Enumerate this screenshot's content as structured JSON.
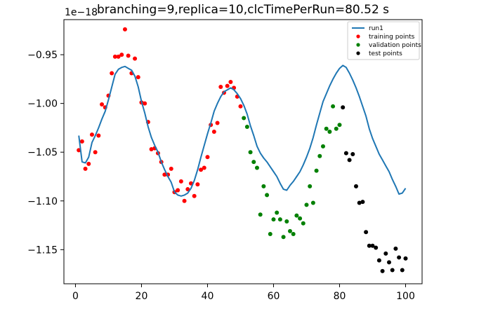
{
  "chart_data": {
    "type": "line",
    "title": "branching=9,replica=10,clcTimePerRun=80.52 s",
    "y_offset_label": "1e−18",
    "xlabel": "",
    "ylabel": "",
    "xlim": [
      -3.5,
      105
    ],
    "ylim": [
      -1.185,
      -0.914
    ],
    "x_ticks": [
      0,
      20,
      40,
      60,
      80,
      100
    ],
    "x_tick_labels": [
      "0",
      "20",
      "40",
      "60",
      "80",
      "100"
    ],
    "y_ticks": [
      -0.95,
      -1.0,
      -1.05,
      -1.1,
      -1.15
    ],
    "y_tick_labels": [
      "−0.95",
      "−1.00",
      "−1.05",
      "−1.10",
      "−1.15"
    ],
    "grid": false,
    "legend_position": "top-right",
    "colors": {
      "run1": "#1f77b4",
      "training": "#ff0000",
      "validation": "#008000",
      "test": "#000000"
    },
    "series": [
      {
        "name": "run1",
        "type": "line",
        "points": [
          [
            1.0,
            -1.033
          ],
          [
            2.0,
            -1.06
          ],
          [
            3.0,
            -1.061
          ],
          [
            4.0,
            -1.055
          ],
          [
            5.0,
            -1.04
          ],
          [
            6.0,
            -1.033
          ],
          [
            7.0,
            -1.025
          ],
          [
            8.0,
            -1.016
          ],
          [
            9.0,
            -1.008
          ],
          [
            10.0,
            -0.996
          ],
          [
            11.0,
            -0.983
          ],
          [
            12.0,
            -0.97
          ],
          [
            13.0,
            -0.965
          ],
          [
            14.0,
            -0.963
          ],
          [
            15.0,
            -0.962
          ],
          [
            16.0,
            -0.964
          ],
          [
            17.0,
            -0.966
          ],
          [
            18.0,
            -0.972
          ],
          [
            19.0,
            -0.983
          ],
          [
            20.0,
            -0.998
          ],
          [
            21.0,
            -1.01
          ],
          [
            22.0,
            -1.024
          ],
          [
            23.0,
            -1.035
          ],
          [
            24.0,
            -1.043
          ],
          [
            25.0,
            -1.05
          ],
          [
            26.0,
            -1.06
          ],
          [
            27.0,
            -1.068
          ],
          [
            28.0,
            -1.075
          ],
          [
            29.0,
            -1.081
          ],
          [
            30.0,
            -1.091
          ],
          [
            31.0,
            -1.094
          ],
          [
            32.0,
            -1.095
          ],
          [
            33.0,
            -1.094
          ],
          [
            34.0,
            -1.092
          ],
          [
            35.0,
            -1.087
          ],
          [
            36.0,
            -1.079
          ],
          [
            37.0,
            -1.068
          ],
          [
            38.0,
            -1.055
          ],
          [
            39.0,
            -1.043
          ],
          [
            40.0,
            -1.031
          ],
          [
            41.0,
            -1.02
          ],
          [
            42.0,
            -1.008
          ],
          [
            43.0,
            -1.0
          ],
          [
            44.0,
            -0.993
          ],
          [
            45.0,
            -0.988
          ],
          [
            46.0,
            -0.986
          ],
          [
            47.0,
            -0.984
          ],
          [
            48.0,
            -0.986
          ],
          [
            49.0,
            -0.99
          ],
          [
            50.0,
            -0.995
          ],
          [
            51.0,
            -1.002
          ],
          [
            52.0,
            -1.011
          ],
          [
            53.0,
            -1.023
          ],
          [
            54.0,
            -1.033
          ],
          [
            55.0,
            -1.044
          ],
          [
            56.0,
            -1.051
          ],
          [
            57.0,
            -1.056
          ],
          [
            58.0,
            -1.06
          ],
          [
            59.0,
            -1.065
          ],
          [
            60.0,
            -1.07
          ],
          [
            61.0,
            -1.075
          ],
          [
            62.0,
            -1.082
          ],
          [
            63.0,
            -1.088
          ],
          [
            64.0,
            -1.089
          ],
          [
            65.0,
            -1.084
          ],
          [
            66.0,
            -1.08
          ],
          [
            67.0,
            -1.075
          ],
          [
            68.0,
            -1.07
          ],
          [
            69.0,
            -1.063
          ],
          [
            70.0,
            -1.055
          ],
          [
            71.0,
            -1.046
          ],
          [
            72.0,
            -1.035
          ],
          [
            73.0,
            -1.022
          ],
          [
            74.0,
            -1.01
          ],
          [
            75.0,
            -0.998
          ],
          [
            76.0,
            -0.99
          ],
          [
            77.0,
            -0.982
          ],
          [
            78.0,
            -0.975
          ],
          [
            79.0,
            -0.969
          ],
          [
            80.0,
            -0.964
          ],
          [
            81.0,
            -0.961
          ],
          [
            82.0,
            -0.963
          ],
          [
            83.0,
            -0.969
          ],
          [
            84.0,
            -0.976
          ],
          [
            85.0,
            -0.984
          ],
          [
            86.0,
            -0.993
          ],
          [
            87.0,
            -1.003
          ],
          [
            88.0,
            -1.013
          ],
          [
            89.0,
            -1.026
          ],
          [
            90.0,
            -1.036
          ],
          [
            91.0,
            -1.044
          ],
          [
            92.0,
            -1.052
          ],
          [
            93.0,
            -1.058
          ],
          [
            94.0,
            -1.064
          ],
          [
            95.0,
            -1.07
          ],
          [
            96.0,
            -1.078
          ],
          [
            97.0,
            -1.085
          ],
          [
            98.0,
            -1.093
          ],
          [
            99.0,
            -1.092
          ],
          [
            100.0,
            -1.087
          ]
        ]
      },
      {
        "name": "training points",
        "type": "scatter",
        "points": [
          [
            1,
            -1.048
          ],
          [
            2,
            -1.039
          ],
          [
            3,
            -1.067
          ],
          [
            4,
            -1.062
          ],
          [
            5,
            -1.032
          ],
          [
            6,
            -1.05
          ],
          [
            7,
            -1.033
          ],
          [
            8,
            -1.001
          ],
          [
            9,
            -1.004
          ],
          [
            10,
            -0.992
          ],
          [
            11,
            -0.969
          ],
          [
            12,
            -0.952
          ],
          [
            13,
            -0.952
          ],
          [
            14,
            -0.95
          ],
          [
            15,
            -0.924
          ],
          [
            16,
            -0.951
          ],
          [
            17,
            -0.969
          ],
          [
            18,
            -0.954
          ],
          [
            19,
            -0.973
          ],
          [
            20,
            -0.999
          ],
          [
            21,
            -1.0
          ],
          [
            22,
            -1.019
          ],
          [
            23,
            -1.047
          ],
          [
            24,
            -1.046
          ],
          [
            25,
            -1.051
          ],
          [
            26,
            -1.06
          ],
          [
            27,
            -1.073
          ],
          [
            28,
            -1.073
          ],
          [
            29,
            -1.067
          ],
          [
            30,
            -1.091
          ],
          [
            31,
            -1.089
          ],
          [
            32,
            -1.08
          ],
          [
            33,
            -1.1
          ],
          [
            34,
            -1.088
          ],
          [
            35,
            -1.082
          ],
          [
            36,
            -1.095
          ],
          [
            37,
            -1.083
          ],
          [
            38,
            -1.068
          ],
          [
            39,
            -1.066
          ],
          [
            40,
            -1.055
          ],
          [
            41,
            -1.022
          ],
          [
            42,
            -1.029
          ],
          [
            43,
            -1.02
          ],
          [
            44,
            -0.983
          ],
          [
            45,
            -0.989
          ],
          [
            46,
            -0.982
          ],
          [
            47,
            -0.978
          ],
          [
            48,
            -0.984
          ],
          [
            49,
            -0.993
          ],
          [
            50,
            -1.003
          ]
        ]
      },
      {
        "name": "validation points",
        "type": "scatter",
        "points": [
          [
            51,
            -1.015
          ],
          [
            52,
            -1.024
          ],
          [
            53,
            -1.05
          ],
          [
            54,
            -1.06
          ],
          [
            55,
            -1.066
          ],
          [
            56,
            -1.114
          ],
          [
            57,
            -1.085
          ],
          [
            58,
            -1.094
          ],
          [
            59,
            -1.134
          ],
          [
            60,
            -1.119
          ],
          [
            61,
            -1.112
          ],
          [
            62,
            -1.119
          ],
          [
            63,
            -1.137
          ],
          [
            64,
            -1.121
          ],
          [
            65,
            -1.131
          ],
          [
            66,
            -1.134
          ],
          [
            67,
            -1.115
          ],
          [
            68,
            -1.118
          ],
          [
            69,
            -1.123
          ],
          [
            70,
            -1.104
          ],
          [
            71,
            -1.085
          ],
          [
            72,
            -1.102
          ],
          [
            73,
            -1.069
          ],
          [
            74,
            -1.054
          ],
          [
            75,
            -1.044
          ],
          [
            76,
            -1.026
          ],
          [
            77,
            -1.029
          ],
          [
            78,
            -1.003
          ],
          [
            79,
            -1.026
          ],
          [
            80,
            -1.022
          ]
        ]
      },
      {
        "name": "test points",
        "type": "scatter",
        "points": [
          [
            81,
            -1.004
          ],
          [
            82,
            -1.051
          ],
          [
            83,
            -1.058
          ],
          [
            84,
            -1.052
          ],
          [
            85,
            -1.085
          ],
          [
            86,
            -1.102
          ],
          [
            87,
            -1.101
          ],
          [
            88,
            -1.132
          ],
          [
            89,
            -1.146
          ],
          [
            90,
            -1.146
          ],
          [
            91,
            -1.148
          ],
          [
            92,
            -1.161
          ],
          [
            93,
            -1.172
          ],
          [
            94,
            -1.154
          ],
          [
            95,
            -1.163
          ],
          [
            96,
            -1.171
          ],
          [
            97,
            -1.149
          ],
          [
            98,
            -1.158
          ],
          [
            99,
            -1.171
          ],
          [
            100,
            -1.159
          ]
        ]
      }
    ]
  }
}
